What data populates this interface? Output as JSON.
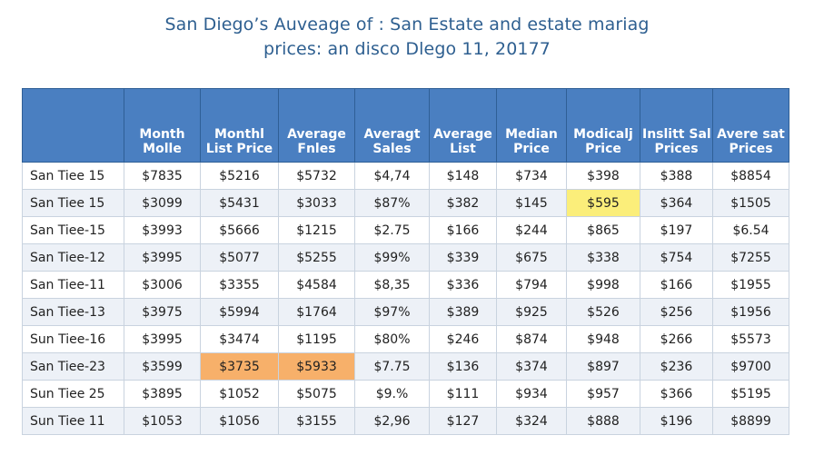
{
  "title": {
    "line1": "San Diego’s Auveage of : San Estate and estate mariag",
    "line2": "prices: an disco Dlego 11, 20177"
  },
  "table": {
    "headers": [
      [
        "",
        ""
      ],
      [
        "Month",
        "Molle"
      ],
      [
        "Monthl",
        "List Price"
      ],
      [
        "Average",
        "Fnles"
      ],
      [
        "Averagt",
        "Sales"
      ],
      [
        "Average",
        "List"
      ],
      [
        "Median",
        "Price"
      ],
      [
        "Modicalj",
        "Price"
      ],
      [
        "Inslitt Sal",
        "Prices"
      ],
      [
        "Avere sat",
        "Prices"
      ]
    ],
    "rows": [
      {
        "label": "San Tiee 15",
        "cells": [
          "$7835",
          "$5216",
          "$5732",
          "$4,74",
          "$148",
          "$734",
          "$398",
          "$388",
          "$8854"
        ]
      },
      {
        "label": "San Tiee 15",
        "cells": [
          "$3099",
          "$5431",
          "$3033",
          "$87%",
          "$382",
          "$145",
          "$595",
          "$364",
          "$1505"
        ]
      },
      {
        "label": "San Tiee-15",
        "cells": [
          "$3993",
          "$5666",
          "$1215",
          "$2.75",
          "$166",
          "$244",
          "$865",
          "$197",
          "$6.54"
        ]
      },
      {
        "label": "San Tiee-12",
        "cells": [
          "$3995",
          "$5077",
          "$5255",
          "$99%",
          "$339",
          "$675",
          "$338",
          "$754",
          "$7255"
        ]
      },
      {
        "label": "San Tiee-11",
        "cells": [
          "$3006",
          "$3355",
          "$4584",
          "$8,35",
          "$336",
          "$794",
          "$998",
          "$166",
          "$1955"
        ]
      },
      {
        "label": "San Tiee-13",
        "cells": [
          "$3975",
          "$5994",
          "$1764",
          "$97%",
          "$389",
          "$925",
          "$526",
          "$256",
          "$1956"
        ]
      },
      {
        "label": "Sun Tiee-16",
        "cells": [
          "$3995",
          "$3474",
          "$1195",
          "$80%",
          "$246",
          "$874",
          "$948",
          "$266",
          "$5573"
        ]
      },
      {
        "label": "San Tiee-23",
        "cells": [
          "$3599",
          "$3735",
          "$5933",
          "$7.75",
          "$136",
          "$374",
          "$897",
          "$236",
          "$9700"
        ]
      },
      {
        "label": "Sun Tiee 25",
        "cells": [
          "$3895",
          "$1052",
          "$5075",
          "$9.%",
          "$111",
          "$934",
          "$957",
          "$366",
          "$5195"
        ]
      },
      {
        "label": "Sun Tiee 11",
        "cells": [
          "$1053",
          "$1056",
          "$3155",
          "$2,96",
          "$127",
          "$324",
          "$888",
          "$196",
          "$8899"
        ]
      }
    ],
    "highlights": [
      {
        "row": 1,
        "col": 6,
        "color": "yellow"
      },
      {
        "row": 7,
        "col": 1,
        "color": "orange"
      },
      {
        "row": 7,
        "col": 2,
        "color": "orange"
      }
    ]
  },
  "colors": {
    "title": "#2e5f90",
    "header_bg": "#4a7fc1",
    "stripe": "#edf1f7",
    "highlight_yellow": "#fbee7a",
    "highlight_orange": "#f7b06a"
  }
}
